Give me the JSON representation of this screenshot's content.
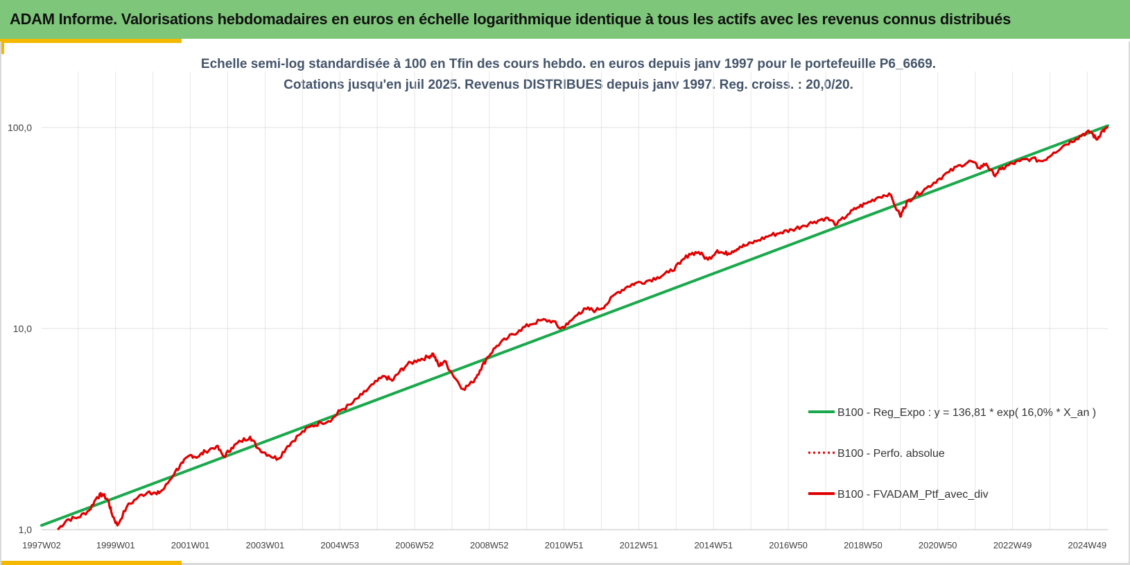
{
  "header": {
    "title": "ADAM Informe. Valorisations hebdomadaires en euros en échelle logarithmique identique à tous les actifs avec les revenus connus distribués"
  },
  "colors": {
    "header_bg": "#7ec77a",
    "accent": "#f5b800",
    "regression": "#19a84b",
    "portfolio": "#e00000"
  },
  "chart_data": {
    "type": "line",
    "title": "Echelle semi-log standardisée  à 100 en Tfin des cours hebdo. en euros depuis janv 1997 pour le portefeuille P6_6669.",
    "subtitle": "Cotations jusqu'en juil 2025. Revenus DISTRIBUES depuis janv 1997. Reg. croiss. : 20,0/20.",
    "xlabel": "",
    "ylabel": "",
    "y_scale": "log",
    "ylim": [
      1,
      190
    ],
    "y_ticks": [
      {
        "value": 1,
        "label": "1,0"
      },
      {
        "value": 10,
        "label": "10,0"
      },
      {
        "value": 100,
        "label": "100,0"
      }
    ],
    "x_range": [
      1997.02,
      2025.55
    ],
    "x_ticks": [
      {
        "value": 1997.02,
        "label": "1997W02"
      },
      {
        "value": 1999.0,
        "label": "1999W01"
      },
      {
        "value": 2001.0,
        "label": "2001W01"
      },
      {
        "value": 2003.0,
        "label": "2003W01"
      },
      {
        "value": 2005.0,
        "label": "2004W53"
      },
      {
        "value": 2007.0,
        "label": "2006W52"
      },
      {
        "value": 2009.0,
        "label": "2008W52"
      },
      {
        "value": 2011.0,
        "label": "2010W51"
      },
      {
        "value": 2013.0,
        "label": "2012W51"
      },
      {
        "value": 2015.0,
        "label": "2014W51"
      },
      {
        "value": 2017.0,
        "label": "2016W50"
      },
      {
        "value": 2019.0,
        "label": "2018W50"
      },
      {
        "value": 2021.0,
        "label": "2020W50"
      },
      {
        "value": 2023.0,
        "label": "2022W49"
      },
      {
        "value": 2025.0,
        "label": "2024W49"
      }
    ],
    "grid": true,
    "legend_position": "bottom-right",
    "series": [
      {
        "name": "B100 - Reg_Expo : y = 136,81 * exp( 16,0% *  X_an )",
        "style": "solid-green",
        "x": [
          1997.02,
          2025.55
        ],
        "y": [
          1.05,
          102
        ]
      },
      {
        "name": "B100 - Perfo. absolue",
        "style": "dotted-red",
        "x": [],
        "y": []
      },
      {
        "name": "B100 - FVADAM_Ptf_avec_div",
        "style": "solid-red",
        "x": [
          1997.45,
          1997.7,
          1998.0,
          1998.3,
          1998.5,
          1998.65,
          1998.8,
          1998.9,
          1999.05,
          1999.3,
          1999.6,
          1999.9,
          2000.1,
          2000.3,
          2000.6,
          2000.8,
          2001.0,
          2001.2,
          2001.4,
          2001.7,
          2001.9,
          2002.1,
          2002.35,
          2002.6,
          2002.8,
          2003.1,
          2003.35,
          2003.6,
          2003.9,
          2004.2,
          2004.5,
          2004.8,
          2005.0,
          2005.3,
          2005.6,
          2005.9,
          2006.2,
          2006.4,
          2006.6,
          2006.8,
          2007.1,
          2007.35,
          2007.5,
          2007.65,
          2007.8,
          2008.0,
          2008.3,
          2008.55,
          2008.75,
          2008.95,
          2009.2,
          2009.5,
          2009.8,
          2010.1,
          2010.4,
          2010.7,
          2010.9,
          2011.1,
          2011.4,
          2011.6,
          2011.85,
          2012.1,
          2012.4,
          2012.7,
          2012.9,
          2013.2,
          2013.5,
          2013.8,
          2014.1,
          2014.35,
          2014.6,
          2014.85,
          2015.1,
          2015.3,
          2015.5,
          2015.7,
          2015.9,
          2016.2,
          2016.5,
          2016.8,
          2017.1,
          2017.4,
          2017.7,
          2018.0,
          2018.3,
          2018.6,
          2018.85,
          2019.1,
          2019.4,
          2019.7,
          2020.0,
          2020.1,
          2020.2,
          2020.4,
          2020.7,
          2021.0,
          2021.3,
          2021.6,
          2021.9,
          2022.1,
          2022.3,
          2022.5,
          2022.7,
          2022.9,
          2023.2,
          2023.5,
          2023.8,
          2024.1,
          2024.4,
          2024.7,
          2024.9,
          2025.1,
          2025.25,
          2025.4,
          2025.55
        ],
        "y": [
          1.0,
          1.12,
          1.15,
          1.25,
          1.45,
          1.5,
          1.4,
          1.2,
          1.05,
          1.3,
          1.45,
          1.55,
          1.5,
          1.6,
          1.95,
          2.15,
          2.35,
          2.3,
          2.45,
          2.6,
          2.3,
          2.55,
          2.75,
          2.9,
          2.55,
          2.35,
          2.25,
          2.6,
          2.95,
          3.25,
          3.4,
          3.55,
          3.9,
          4.2,
          4.7,
          5.3,
          5.8,
          5.5,
          6.1,
          6.6,
          7.0,
          7.2,
          7.5,
          6.5,
          6.9,
          6.0,
          5.0,
          5.4,
          6.2,
          7.2,
          8.2,
          9.0,
          9.8,
          10.5,
          11.0,
          10.9,
          10.0,
          10.5,
          12.0,
          12.5,
          12.3,
          13.0,
          15.0,
          16.2,
          16.8,
          17.2,
          18.0,
          19.0,
          21.0,
          23.5,
          24.0,
          22.0,
          24.5,
          23.5,
          24.2,
          25.5,
          26.0,
          27.5,
          29.0,
          30.0,
          31.0,
          32.5,
          34.0,
          35.5,
          33.0,
          37.0,
          40.0,
          42.0,
          45.0,
          47.0,
          36.0,
          40.0,
          43.0,
          46.0,
          50.0,
          55.0,
          60.0,
          65.0,
          68.0,
          63.0,
          66.0,
          58.0,
          62.0,
          65.0,
          68.0,
          70.0,
          68.0,
          75.0,
          82.0,
          88.0,
          93.0,
          95.0,
          87.0,
          96.0,
          99.0
        ]
      }
    ]
  }
}
